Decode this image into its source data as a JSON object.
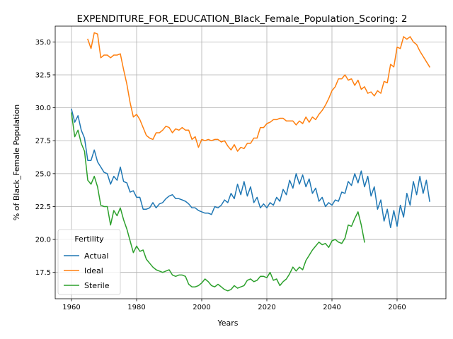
{
  "chart_data": {
    "type": "line",
    "title": "EXPENDITURE_FOR_EDUCATION_Black_Female_Population_Scoring: 2",
    "xlabel": "Years",
    "ylabel": "% of Black_Female Population",
    "xlim": [
      1955,
      2075
    ],
    "ylim": [
      15.5,
      36.2
    ],
    "xticks": [
      1960,
      1980,
      2000,
      2020,
      2040,
      2060
    ],
    "yticks": [
      17.5,
      20.0,
      22.5,
      25.0,
      27.5,
      30.0,
      32.5,
      35.0
    ],
    "ytick_labels": [
      "17.5",
      "20.0",
      "22.5",
      "25.0",
      "27.5",
      "30.0",
      "32.5",
      "35.0"
    ],
    "grid": true,
    "legend": {
      "title": "Fertility",
      "placement": "lower-left"
    },
    "series": [
      {
        "name": "Actual",
        "color": "#1f77b4",
        "x_start": 1960,
        "values": [
          29.9,
          28.9,
          29.4,
          28.3,
          27.7,
          26.0,
          26.0,
          26.8,
          25.9,
          25.5,
          25.1,
          25.0,
          24.2,
          24.8,
          24.5,
          25.5,
          24.4,
          24.3,
          23.6,
          23.7,
          23.2,
          23.2,
          22.3,
          22.3,
          22.4,
          22.8,
          22.4,
          22.7,
          22.8,
          23.1,
          23.3,
          23.4,
          23.1,
          23.1,
          23.0,
          22.9,
          22.7,
          22.4,
          22.4,
          22.2,
          22.1,
          22.0,
          22.0,
          21.9,
          22.5,
          22.4,
          22.6,
          23.0,
          22.8,
          23.5,
          23.1,
          24.2,
          23.4,
          24.4,
          23.3,
          24.0,
          22.8,
          23.2,
          22.4,
          22.7,
          22.4,
          22.8,
          22.6,
          23.2,
          22.9,
          23.8,
          23.4,
          24.5,
          23.9,
          25.0,
          24.2,
          24.9,
          24.0,
          24.6,
          23.5,
          23.9,
          22.9,
          23.2,
          22.5,
          22.8,
          22.6,
          23.0,
          22.9,
          23.6,
          23.5,
          24.4,
          24.1,
          25.0,
          24.3,
          25.2,
          24.0,
          24.8,
          23.3,
          24.0,
          22.3,
          23.0,
          21.4,
          22.3,
          20.9,
          22.2,
          21.0,
          22.6,
          21.7,
          23.5,
          22.6,
          24.4,
          23.4,
          24.8,
          23.5,
          24.5,
          22.9
        ]
      },
      {
        "name": "Ideal",
        "color": "#ff7f0e",
        "x_start": 1965,
        "values": [
          35.2,
          34.5,
          35.7,
          35.6,
          33.8,
          34.0,
          34.0,
          33.8,
          34.0,
          34.0,
          34.1,
          32.9,
          31.8,
          30.4,
          29.3,
          29.5,
          29.1,
          28.5,
          27.9,
          27.7,
          27.6,
          28.1,
          28.1,
          28.3,
          28.6,
          28.5,
          28.1,
          28.4,
          28.3,
          28.5,
          28.3,
          28.3,
          27.6,
          27.8,
          27.0,
          27.6,
          27.5,
          27.6,
          27.5,
          27.6,
          27.6,
          27.4,
          27.5,
          27.1,
          26.8,
          27.2,
          26.7,
          27.0,
          26.9,
          27.3,
          27.3,
          27.7,
          27.7,
          28.5,
          28.5,
          28.8,
          28.9,
          29.1,
          29.1,
          29.2,
          29.2,
          29.0,
          29.0,
          29.0,
          28.7,
          29.0,
          28.8,
          29.3,
          28.9,
          29.3,
          29.1,
          29.5,
          29.8,
          30.2,
          30.7,
          31.3,
          31.6,
          32.2,
          32.2,
          32.5,
          32.1,
          32.2,
          31.7,
          32.1,
          31.4,
          31.6,
          31.1,
          31.2,
          30.9,
          31.3,
          31.1,
          32.0,
          31.9,
          33.3,
          33.1,
          34.6,
          34.5,
          35.4,
          35.2,
          35.4,
          35.0,
          34.8,
          34.3,
          33.9,
          33.5,
          33.1
        ]
      },
      {
        "name": "Sterile",
        "color": "#2ca02c",
        "x_start": 1960,
        "values": [
          29.6,
          27.8,
          28.3,
          27.3,
          26.7,
          24.5,
          24.2,
          24.8,
          24.0,
          22.6,
          22.5,
          22.5,
          21.1,
          22.2,
          21.8,
          22.4,
          21.5,
          20.8,
          19.9,
          19.0,
          19.5,
          19.1,
          19.2,
          18.5,
          18.2,
          17.9,
          17.7,
          17.6,
          17.5,
          17.6,
          17.7,
          17.3,
          17.2,
          17.3,
          17.3,
          17.2,
          16.6,
          16.4,
          16.4,
          16.5,
          16.7,
          17.0,
          16.8,
          16.5,
          16.4,
          16.6,
          16.4,
          16.2,
          16.1,
          16.2,
          16.5,
          16.3,
          16.4,
          16.5,
          16.9,
          17.0,
          16.8,
          16.9,
          17.2,
          17.2,
          17.1,
          17.5,
          16.9,
          17.0,
          16.5,
          16.8,
          17.0,
          17.4,
          17.9,
          17.6,
          17.9,
          17.7,
          18.4,
          18.8,
          19.2,
          19.5,
          19.8,
          19.6,
          19.7,
          19.4,
          19.9,
          20.0,
          19.8,
          19.7,
          20.1,
          21.1,
          21.0,
          21.6,
          22.1,
          21.1,
          19.8
        ]
      }
    ]
  }
}
